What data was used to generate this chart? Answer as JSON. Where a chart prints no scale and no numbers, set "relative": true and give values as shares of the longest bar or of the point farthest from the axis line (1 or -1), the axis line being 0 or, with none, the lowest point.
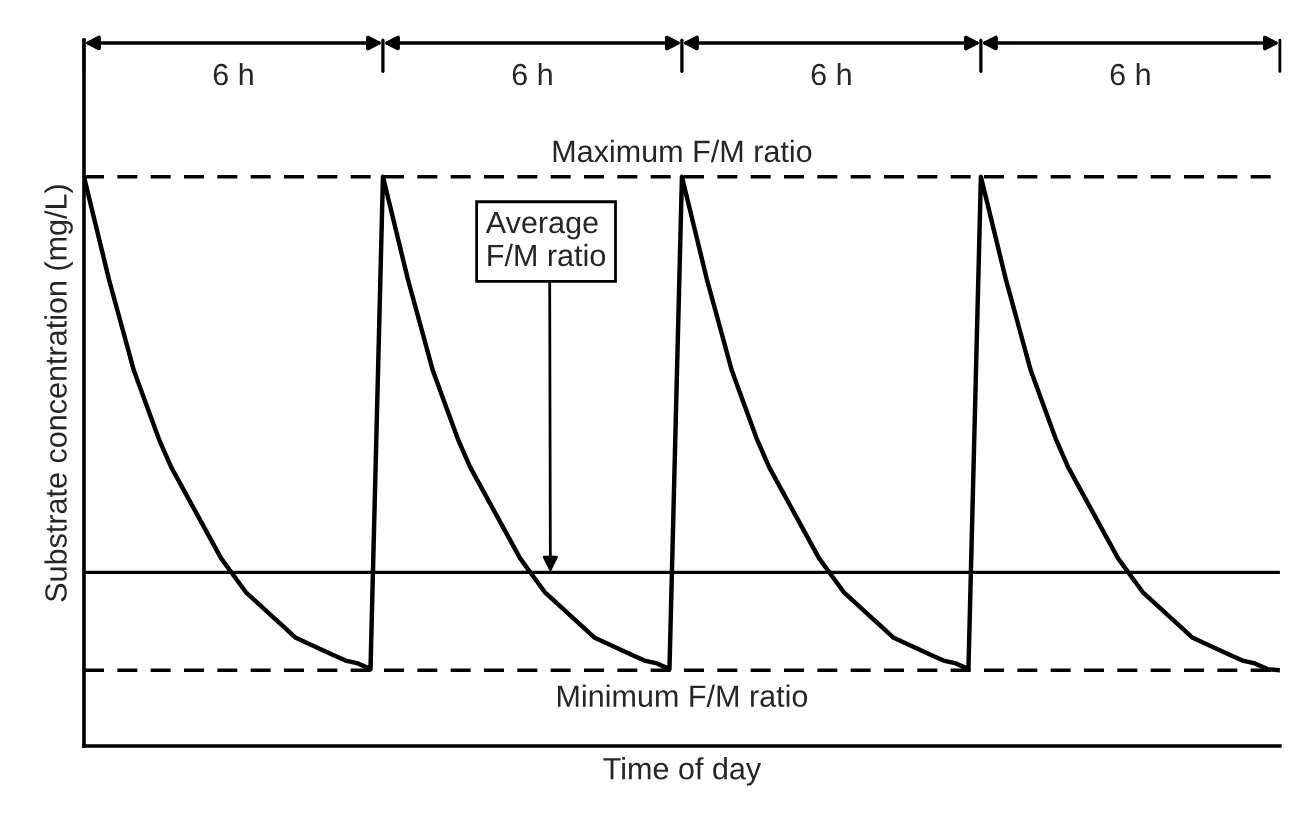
{
  "chart_data": {
    "type": "line",
    "relative": true,
    "xlabel": "Time of day",
    "ylabel": "Substrate concentration (mg/L)",
    "tick_labels": false,
    "marker": "none",
    "line_style": "solid",
    "categories": [
      null,
      null,
      null,
      null,
      null,
      null,
      null,
      null,
      null,
      null,
      null,
      null,
      null,
      null,
      null,
      null,
      null,
      null,
      null,
      null,
      null,
      null,
      null,
      null,
      null,
      null,
      null,
      null,
      null,
      null,
      null,
      null,
      null,
      null,
      null,
      null,
      null,
      null,
      null,
      null,
      null,
      null,
      null,
      null,
      null,
      null,
      null,
      null,
      null,
      null,
      null,
      null,
      null,
      null,
      null,
      null,
      null,
      null,
      null,
      null,
      null,
      null,
      null,
      null,
      null,
      null,
      null,
      null,
      null,
      null,
      null,
      null,
      null,
      null,
      null,
      null,
      null,
      null,
      null,
      null,
      null,
      null,
      null,
      null,
      null,
      null,
      null,
      null,
      null,
      null,
      null,
      null,
      null,
      null,
      null,
      null,
      null
    ],
    "series": [
      {
        "color": "#000000",
        "values": [
          1,
          0.91,
          0.82,
          0.74,
          0.66,
          0.6,
          0.54,
          0.49,
          0.45,
          0.41,
          0.37,
          0.33,
          0.3,
          0.27,
          0.25,
          0.23,
          0.21,
          0.19,
          0.18,
          0.17,
          0.16,
          0.15,
          0.145,
          0.135,
          1,
          0.91,
          0.82,
          0.74,
          0.66,
          0.6,
          0.54,
          0.49,
          0.45,
          0.41,
          0.37,
          0.33,
          0.3,
          0.27,
          0.25,
          0.23,
          0.21,
          0.19,
          0.18,
          0.17,
          0.16,
          0.15,
          0.145,
          0.135,
          1,
          0.91,
          0.82,
          0.74,
          0.66,
          0.6,
          0.54,
          0.49,
          0.45,
          0.41,
          0.37,
          0.33,
          0.3,
          0.27,
          0.25,
          0.23,
          0.21,
          0.19,
          0.18,
          0.17,
          0.16,
          0.15,
          0.145,
          0.135,
          1,
          0.91,
          0.82,
          0.74,
          0.66,
          0.6,
          0.54,
          0.49,
          0.45,
          0.41,
          0.37,
          0.33,
          0.3,
          0.27,
          0.25,
          0.23,
          0.21,
          0.19,
          0.18,
          0.17,
          0.16,
          0.15,
          0.145,
          0.135,
          0.133
        ]
      }
    ],
    "ref_lines": [
      {
        "axis": "y",
        "value": 1,
        "label": "Maximum F/M ratio",
        "line_style": "dashed",
        "color": "#000000"
      },
      {
        "axis": "y",
        "value": 0.305,
        "line_style": "solid",
        "color": "#000000"
      },
      {
        "axis": "y",
        "value": 0.133,
        "label": "Minimum F/M ratio",
        "line_style": "dashed",
        "color": "#000000"
      }
    ],
    "annotations": [
      "6 h",
      "6 h",
      "6 h",
      "6 h",
      {
        "text": "Average\nF/M ratio",
        "y": 0.305
      }
    ]
  }
}
